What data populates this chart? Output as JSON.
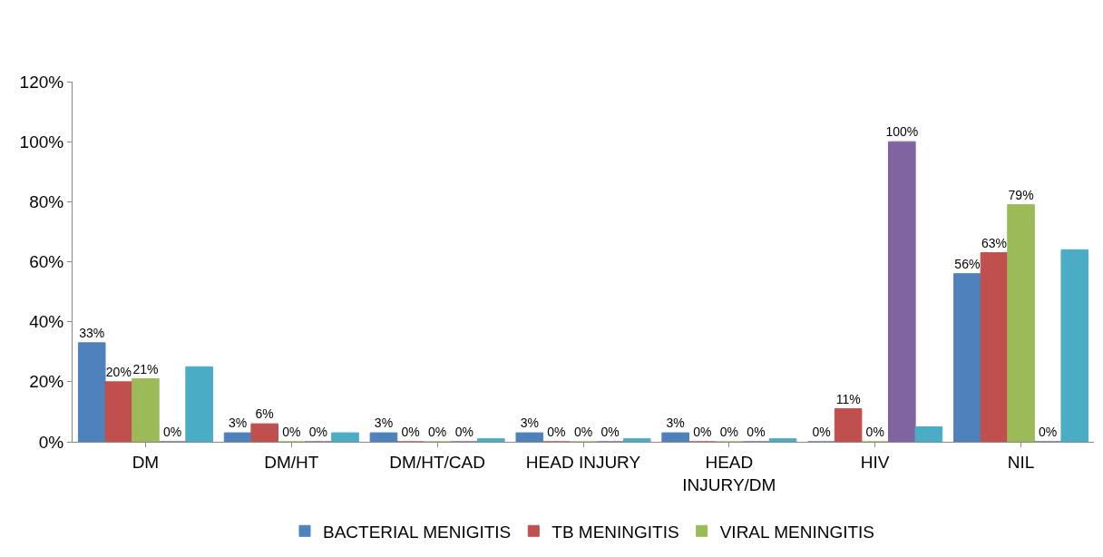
{
  "chart_data": {
    "type": "bar",
    "categories": [
      "DM",
      "DM/HT",
      "DM/HT/CAD",
      "HEAD INJURY",
      "HEAD INJURY/DM",
      "HIV",
      "NIL"
    ],
    "series": [
      {
        "name": "BACTERIAL MENIGITIS",
        "color": "#4f81bd",
        "values": [
          33,
          3,
          3,
          3,
          3,
          0,
          56
        ],
        "value_labels": [
          "33%",
          "3%",
          "3%",
          "3%",
          "3%",
          "0%",
          "56%"
        ]
      },
      {
        "name": "TB MENINGITIS",
        "color": "#c0504d",
        "values": [
          20,
          6,
          0,
          0,
          0,
          11,
          63
        ],
        "value_labels": [
          "20%",
          "6%",
          "0%",
          "0%",
          "0%",
          "11%",
          "63%"
        ]
      },
      {
        "name": "VIRAL MENINGITIS",
        "color": "#9bbb59",
        "values": [
          21,
          0,
          0,
          0,
          0,
          0,
          79
        ],
        "value_labels": [
          "21%",
          "0%",
          "0%",
          "0%",
          "0%",
          "0%",
          "79%"
        ]
      },
      {
        "color": "#8064a2",
        "values": [
          0,
          0,
          0,
          0,
          0,
          100,
          0
        ],
        "value_labels": [
          "0%",
          "0%",
          "0%",
          "0%",
          "0%",
          "100%",
          "0%"
        ]
      },
      {
        "color": "#4bacc6",
        "values": [
          25,
          3,
          1,
          1,
          1,
          5,
          64
        ]
      }
    ],
    "ylim": [
      0,
      120
    ],
    "yticks": [
      {
        "value": 0,
        "label": "0%"
      },
      {
        "value": 20,
        "label": "20%"
      },
      {
        "value": 40,
        "label": "40%"
      },
      {
        "value": 60,
        "label": "60%"
      },
      {
        "value": 80,
        "label": "80%"
      },
      {
        "value": 100,
        "label": "100%"
      },
      {
        "value": 120,
        "label": "120%"
      }
    ],
    "grid": false,
    "legend": "bottom"
  }
}
